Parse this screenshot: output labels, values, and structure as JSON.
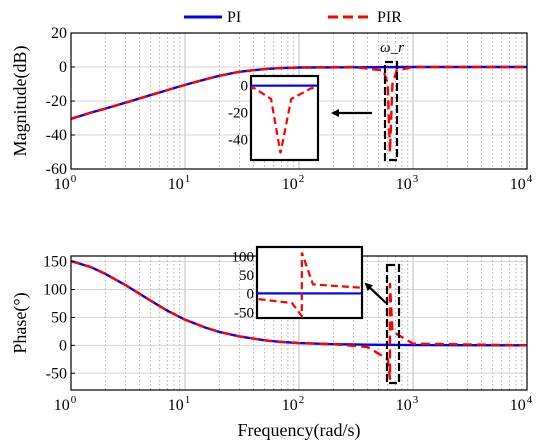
{
  "legend": {
    "items": [
      {
        "label": "PI",
        "color": "#0000ff",
        "dash": "solid"
      },
      {
        "label": "PIR",
        "color": "#ff0000",
        "dash": "dashed"
      }
    ]
  },
  "chart_data": [
    {
      "type": "line",
      "ylabel": "Magnitude(dB)",
      "xlabel": "",
      "xscale": "log",
      "xlim": [
        1,
        10000
      ],
      "ylim": [
        -60,
        20
      ],
      "yticks": [
        "20",
        "0",
        "-20",
        "-40",
        "-60"
      ],
      "xticks": [
        "10^0",
        "10^1",
        "10^2",
        "10^3",
        "10^4"
      ],
      "grid": true,
      "annotation": "ω_r",
      "resonance_frequency": 628,
      "series": [
        {
          "name": "PI",
          "x": [
            1,
            1.5,
            2,
            3,
            5,
            7,
            10,
            15,
            20,
            30,
            50,
            70,
            100,
            1000,
            10000
          ],
          "y": [
            -30.5,
            -26.8,
            -24.5,
            -21.0,
            -16.5,
            -13.6,
            -10.5,
            -7.3,
            -5.2,
            -2.8,
            -1.2,
            -0.6,
            -0.3,
            0,
            0
          ]
        },
        {
          "name": "PIR",
          "x": [
            1,
            1.5,
            2,
            3,
            5,
            7,
            10,
            15,
            20,
            30,
            50,
            70,
            100,
            300,
            550,
            600,
            628,
            660,
            720,
            1000,
            10000
          ],
          "y": [
            -30.5,
            -26.8,
            -24.5,
            -21.0,
            -16.5,
            -13.6,
            -10.5,
            -7.3,
            -5.2,
            -2.8,
            -1.2,
            -0.6,
            -0.3,
            0,
            -2,
            -10,
            -50,
            -10,
            -2,
            0,
            0
          ]
        }
      ],
      "inset": {
        "yticks": [
          "0",
          "-20",
          "-40"
        ],
        "ylim": [
          -55,
          7
        ]
      }
    },
    {
      "type": "line",
      "ylabel": "Phase(°)",
      "xlabel": "Frequency(rad/s)",
      "xscale": "log",
      "xlim": [
        1,
        10000
      ],
      "ylim": [
        -80,
        160
      ],
      "yticks": [
        "150",
        "100",
        "50",
        "0",
        "-50"
      ],
      "xticks": [
        "10^0",
        "10^1",
        "10^2",
        "10^3",
        "10^4"
      ],
      "grid": true,
      "series": [
        {
          "name": "PI",
          "x": [
            1,
            1.5,
            2,
            3,
            5,
            7,
            10,
            15,
            20,
            30,
            50,
            70,
            100,
            200,
            500,
            1000,
            10000
          ],
          "y": [
            151,
            140,
            128,
            108,
            80,
            62,
            46,
            32,
            24,
            16,
            9,
            6,
            4,
            2,
            1,
            0.5,
            0
          ]
        },
        {
          "name": "PIR",
          "x": [
            1,
            1.5,
            2,
            3,
            5,
            7,
            10,
            15,
            20,
            30,
            50,
            70,
            100,
            200,
            400,
            600,
            628,
            628.1,
            660,
            1000,
            10000
          ],
          "y": [
            151,
            140,
            128,
            108,
            80,
            62,
            46,
            32,
            24,
            16,
            9,
            6,
            4,
            2,
            -3,
            -25,
            -60,
            110,
            25,
            3,
            0
          ]
        }
      ],
      "inset": {
        "yticks": [
          "100",
          "50",
          "0",
          "-50"
        ],
        "ylim": [
          -65,
          125
        ]
      }
    }
  ]
}
